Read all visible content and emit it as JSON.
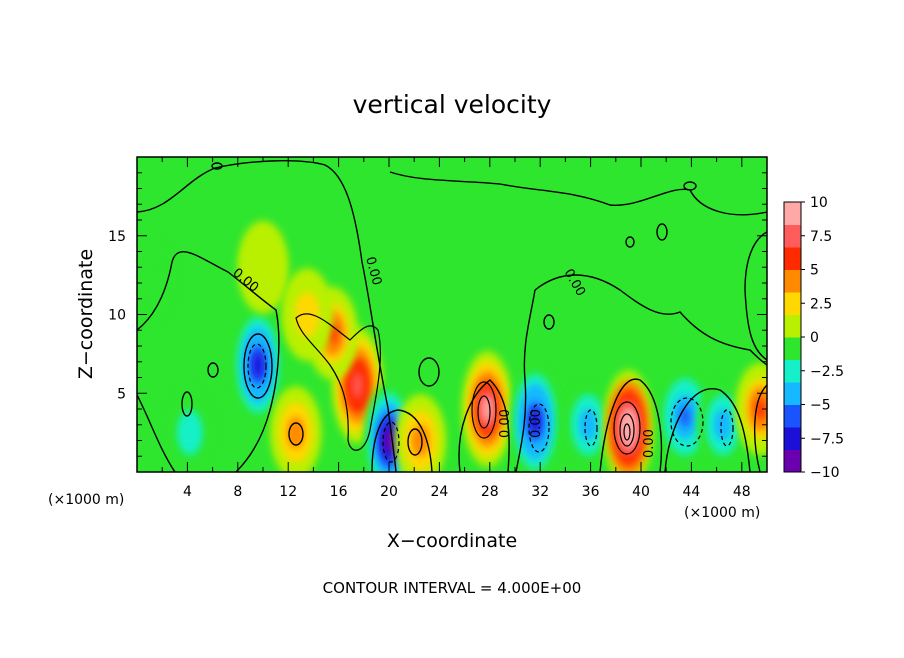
{
  "title": "vertical velocity",
  "footer": "CONTOUR INTERVAL = 4.000E+00",
  "chart_data": {
    "type": "heatmap",
    "title": "vertical velocity",
    "xlabel": "X−coordinate",
    "ylabel": "Z−coordinate",
    "x_unit_label": "(×1000 m)",
    "z_unit_label": "(×1000 m)",
    "xlim": [
      0,
      50
    ],
    "ylim": [
      0,
      20
    ],
    "x_ticks": [
      "4",
      "8",
      "12",
      "16",
      "20",
      "24",
      "28",
      "32",
      "36",
      "40",
      "44",
      "48"
    ],
    "y_ticks": [
      "5",
      "10",
      "15"
    ],
    "colorbar": {
      "range": [
        -10,
        10
      ],
      "tick_labels": [
        "10",
        "7.5",
        "5",
        "2.5",
        "0",
        "−2.5",
        "−5",
        "−7.5",
        "−10"
      ],
      "colors": [
        "#6a00b0",
        "#1c10d8",
        "#1a54ff",
        "#16b8ff",
        "#16f0c8",
        "#2ee62e",
        "#b8f000",
        "#ffd800",
        "#ff8a00",
        "#ff2a00",
        "#ff5c5c",
        "#ffa8a8"
      ]
    },
    "contour_labels": [
      "0.00",
      "0.00",
      "0.00",
      "0.00",
      "0.00",
      "0.00"
    ],
    "features": [
      {
        "x": 9.6,
        "z": 6.8,
        "w": -7.0
      },
      {
        "x": 4.2,
        "z": 2.5,
        "w": -3.0
      },
      {
        "x": 12.6,
        "z": 2.5,
        "w": 4.5
      },
      {
        "x": 17.5,
        "z": 5.5,
        "w": 7.5
      },
      {
        "x": 15.5,
        "z": 8.8,
        "w": 5.0
      },
      {
        "x": 13.5,
        "z": 10.0,
        "w": 3.0
      },
      {
        "x": 20.0,
        "z": 2.0,
        "w": -8.5
      },
      {
        "x": 22.5,
        "z": 2.0,
        "w": 4.0
      },
      {
        "x": 27.8,
        "z": 4.0,
        "w": 8.5
      },
      {
        "x": 31.6,
        "z": 3.2,
        "w": -7.5
      },
      {
        "x": 35.8,
        "z": 3.0,
        "w": -4.5
      },
      {
        "x": 39.0,
        "z": 2.8,
        "w": 10.0
      },
      {
        "x": 43.5,
        "z": 3.5,
        "w": -5.5
      },
      {
        "x": 46.5,
        "z": 3.0,
        "w": -4.5
      },
      {
        "x": 49.5,
        "z": 4.0,
        "w": 5.0
      },
      {
        "x": 1.0,
        "z": 12.0,
        "w": -1.5
      },
      {
        "x": 10.0,
        "z": 13.0,
        "w": 1.0
      }
    ]
  }
}
